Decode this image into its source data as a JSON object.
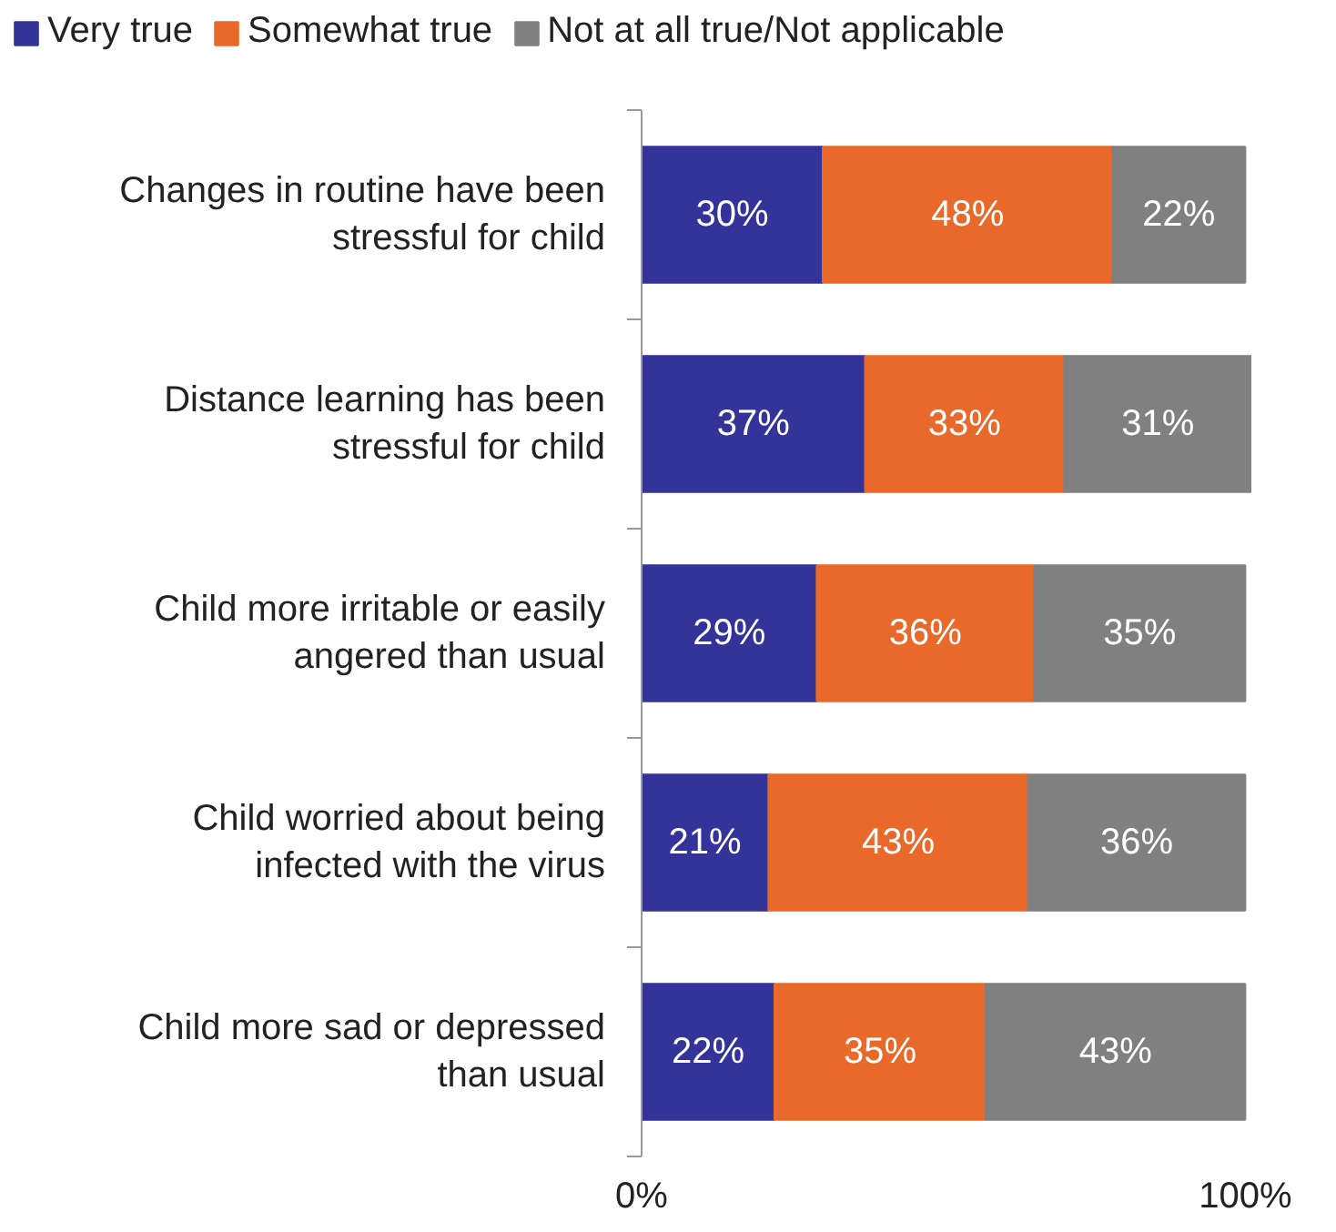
{
  "chart_data": {
    "type": "bar",
    "orientation": "horizontal",
    "stacked": true,
    "legend": "top",
    "grid": false,
    "categories": [
      "Changes in routine have been\nstressful for child",
      "Distance learning has been\nstressful for child",
      "Child more irritable or easily\nangered than usual",
      "Child worried about being\ninfected with the virus",
      "Child more sad or depressed\nthan usual"
    ],
    "xlim": [
      0,
      101
    ],
    "xticks": [
      {
        "value": 0,
        "label": "0%"
      },
      {
        "value": 100,
        "label": "100%"
      }
    ],
    "series": [
      {
        "name": "Very true",
        "color": "#333399",
        "values": [
          30,
          37,
          29,
          21,
          22
        ],
        "value_labels": [
          "30%",
          "37%",
          "29%",
          "21%",
          "22%"
        ]
      },
      {
        "name": "Somewhat true",
        "color": "#e8692a",
        "values": [
          48,
          33,
          36,
          43,
          35
        ],
        "value_labels": [
          "48%",
          "33%",
          "36%",
          "43%",
          "35%"
        ]
      },
      {
        "name": "Not at all true/Not applicable",
        "color": "#808080",
        "values": [
          22,
          31,
          35,
          36,
          43
        ],
        "value_labels": [
          "22%",
          "31%",
          "35%",
          "36%",
          "43%"
        ]
      }
    ]
  }
}
